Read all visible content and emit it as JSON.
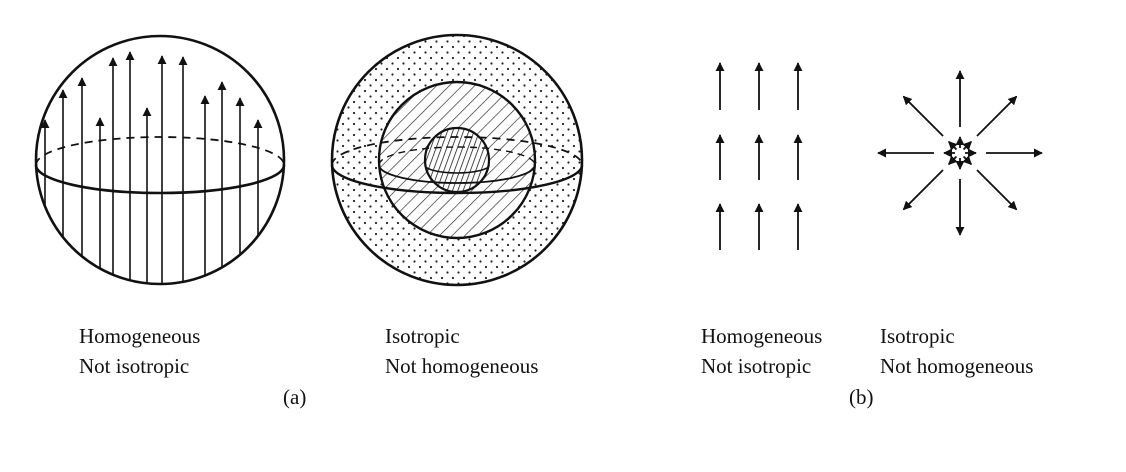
{
  "figure": {
    "panel_a": {
      "caption": "(a)",
      "left": {
        "line1": "Homogeneous",
        "line2": "Not isotropic"
      },
      "right": {
        "line1": "Isotropic",
        "line2": "Not homogeneous"
      }
    },
    "panel_b": {
      "caption": "(b)",
      "left": {
        "line1": "Homogeneous",
        "line2": "Not isotropic"
      },
      "right": {
        "line1": "Isotropic",
        "line2": "Not homogeneous"
      }
    }
  },
  "colors": {
    "ink": "#111111",
    "background": "#ffffff"
  }
}
